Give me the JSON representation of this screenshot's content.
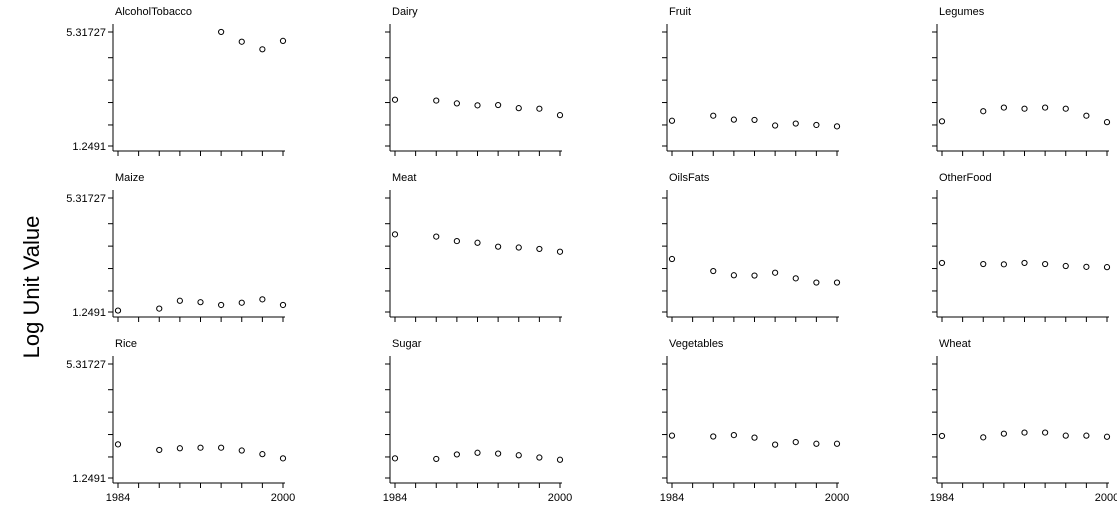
{
  "chart_data": {
    "type": "scatter",
    "ylabel": "Log Unit Value",
    "xlabel": "",
    "xlim": [
      1984,
      2000
    ],
    "ylim": [
      1.2491,
      5.31727
    ],
    "xticks": [
      1984,
      2000
    ],
    "xtick_labels": [
      "1984",
      "2000"
    ],
    "yticks": [
      1.2491,
      5.31727
    ],
    "ytick_labels": [
      "1.2491",
      "5.31727"
    ],
    "yticks_minor": [
      2.0,
      2.8,
      3.6,
      4.4
    ],
    "grid": false,
    "panels": [
      {
        "name": "AlcoholTobacco",
        "x": [
          1994,
          1996,
          1998,
          2000
        ],
        "y": [
          5.32,
          4.97,
          4.7,
          5.0
        ]
      },
      {
        "name": "Dairy",
        "x": [
          1984,
          1988,
          1990,
          1992,
          1994,
          1996,
          1998,
          2000
        ],
        "y": [
          2.9,
          2.87,
          2.77,
          2.7,
          2.71,
          2.6,
          2.58,
          2.35
        ]
      },
      {
        "name": "Fruit",
        "x": [
          1984,
          1988,
          1990,
          1992,
          1994,
          1996,
          1998,
          2000
        ],
        "y": [
          2.15,
          2.33,
          2.19,
          2.18,
          1.98,
          2.05,
          2.0,
          1.95
        ]
      },
      {
        "name": "Legumes",
        "x": [
          1984,
          1988,
          1990,
          1992,
          1994,
          1996,
          1998,
          2000
        ],
        "y": [
          2.13,
          2.49,
          2.62,
          2.58,
          2.62,
          2.58,
          2.33,
          2.1
        ]
      },
      {
        "name": "Maize",
        "x": [
          1984,
          1988,
          1990,
          1992,
          1994,
          1996,
          1998,
          2000
        ],
        "y": [
          1.3,
          1.37,
          1.65,
          1.6,
          1.5,
          1.58,
          1.7,
          1.5
        ]
      },
      {
        "name": "Meat",
        "x": [
          1984,
          1988,
          1990,
          1992,
          1994,
          1996,
          1998,
          2000
        ],
        "y": [
          4.02,
          3.94,
          3.78,
          3.72,
          3.58,
          3.55,
          3.5,
          3.4
        ]
      },
      {
        "name": "OilsFats",
        "x": [
          1984,
          1988,
          1990,
          1992,
          1994,
          1996,
          1998,
          2000
        ],
        "y": [
          3.14,
          2.71,
          2.56,
          2.55,
          2.65,
          2.45,
          2.3,
          2.3
        ]
      },
      {
        "name": "OtherFood",
        "x": [
          1984,
          1988,
          1990,
          1992,
          1994,
          1996,
          1998,
          2000
        ],
        "y": [
          3.0,
          2.96,
          2.95,
          3.0,
          2.96,
          2.89,
          2.86,
          2.85
        ]
      },
      {
        "name": "Rice",
        "x": [
          1984,
          1988,
          1990,
          1992,
          1994,
          1996,
          1998,
          2000
        ],
        "y": [
          2.45,
          2.25,
          2.31,
          2.33,
          2.33,
          2.23,
          2.1,
          1.95
        ]
      },
      {
        "name": "Sugar",
        "x": [
          1984,
          1988,
          1990,
          1992,
          1994,
          1996,
          1998,
          2000
        ],
        "y": [
          1.95,
          1.93,
          2.09,
          2.15,
          2.12,
          2.06,
          1.98,
          1.9
        ]
      },
      {
        "name": "Vegetables",
        "x": [
          1984,
          1988,
          1990,
          1992,
          1994,
          1996,
          1998,
          2000
        ],
        "y": [
          2.76,
          2.73,
          2.78,
          2.69,
          2.44,
          2.53,
          2.47,
          2.47
        ]
      },
      {
        "name": "Wheat",
        "x": [
          1984,
          1988,
          1990,
          1992,
          1994,
          1996,
          1998,
          2000
        ],
        "y": [
          2.75,
          2.7,
          2.83,
          2.87,
          2.87,
          2.76,
          2.76,
          2.72
        ]
      }
    ]
  }
}
